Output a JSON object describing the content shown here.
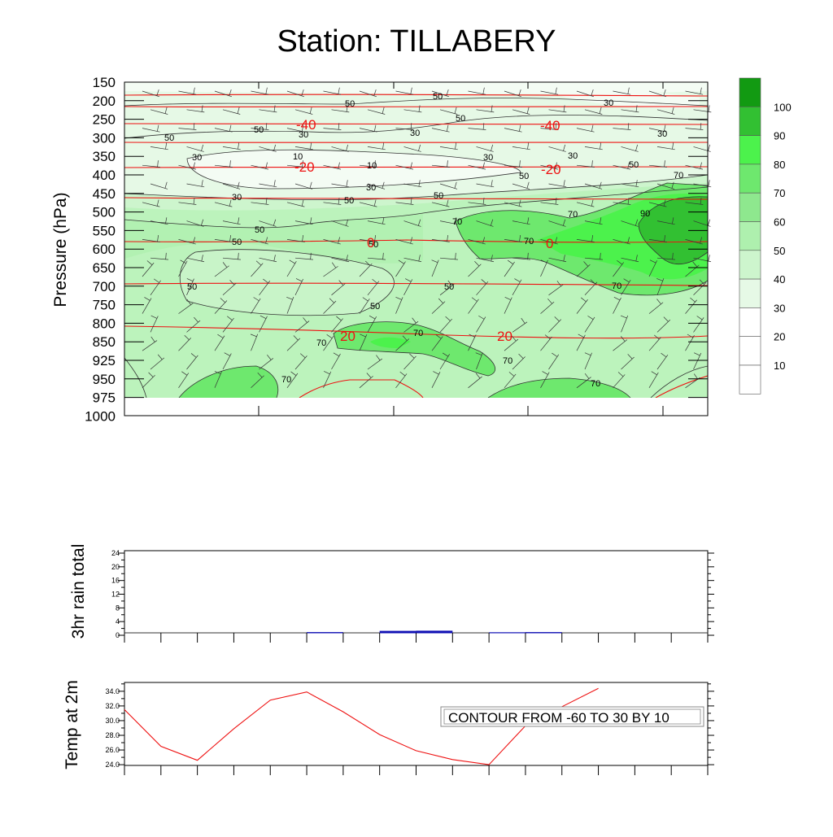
{
  "title": "Station: TILLABERY",
  "chart_data": [
    {
      "type": "heatmap",
      "ylabel": "Pressure (hPa)",
      "y_ticks": [
        "150",
        "200",
        "250",
        "300",
        "350",
        "400",
        "450",
        "500",
        "550",
        "600",
        "650",
        "700",
        "750",
        "800",
        "850",
        "925",
        "950",
        "975",
        "1000"
      ],
      "colorbar": {
        "labels": [
          "100",
          "90",
          "80",
          "70",
          "60",
          "50",
          "40",
          "30",
          "20",
          "10"
        ],
        "colors": [
          "#129a12",
          "#32c032",
          "#4cf24c",
          "#6ee86e",
          "#8ee88e",
          "#aef0ae",
          "#cdf5cd",
          "#e6f9e6",
          "#ffffff",
          "#ffffff",
          "#ffffff"
        ]
      },
      "rh_contour_labels": [
        "10",
        "30",
        "50",
        "70",
        "90"
      ],
      "temp_contour_labels": [
        "-40",
        "-20",
        "0",
        "20"
      ],
      "temp_contour_color": "#ee1111"
    },
    {
      "type": "bar",
      "ylabel": "3hr rain total",
      "y_ticks": [
        "0",
        "4",
        "8",
        "12",
        "16",
        "20",
        "24"
      ],
      "ylim": [
        0,
        24
      ],
      "values": [
        0,
        0,
        0,
        0,
        0,
        0.1,
        0,
        0.45,
        0.5,
        0,
        0.05,
        0.1,
        0,
        0,
        0,
        0
      ],
      "bar_color": "#1010b4"
    },
    {
      "type": "line",
      "ylabel": "Temp at 2m",
      "y_ticks": [
        "24.0",
        "26.0",
        "28.0",
        "30.0",
        "32.0",
        "34.0"
      ],
      "ylim": [
        23.9,
        35.2
      ],
      "values": [
        31.5,
        26.5,
        24.6,
        28.9,
        32.8,
        33.9,
        31.2,
        28.1,
        25.9,
        24.7,
        24.0,
        29.3,
        31.9,
        34.4
      ],
      "line_color": "#ee1111",
      "annotation": "CONTOUR FROM -60 TO 30 BY 10"
    }
  ]
}
